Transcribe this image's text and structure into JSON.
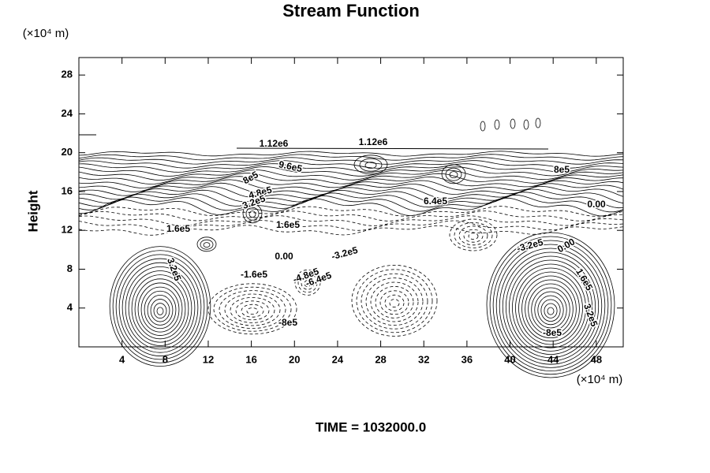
{
  "chart_data": {
    "type": "contour",
    "title": "Stream Function",
    "ylabel": "Height",
    "y_unit_label": "(×10⁴ m)",
    "x_unit_label": "(×10⁴ m)",
    "footer": "TIME = 1032000.0",
    "xlim": [
      0,
      50.5
    ],
    "xticks": [
      4,
      8,
      12,
      16,
      20,
      24,
      28,
      32,
      36,
      40,
      44,
      48
    ],
    "ylim": [
      0,
      29.8
    ],
    "yticks": [
      4,
      8,
      12,
      16,
      20,
      24,
      28
    ],
    "negative_dashed": true,
    "color": "#000000",
    "contour_labels": [
      "1.12e6",
      "1.12e6",
      "9.6e5",
      "8e5",
      "8e5",
      "4.8e5",
      "3.2e5",
      "6.4e5",
      "0.00",
      "1.6e5",
      "1.6e5",
      "0.00",
      "-3.2e5",
      "-3.2e5",
      "0.00",
      "3.2e5",
      "-1.6e5",
      "-4.8e5",
      "-6.4e5",
      "-8e5",
      "1.6e5",
      "3.2e5",
      "-8e5"
    ]
  }
}
